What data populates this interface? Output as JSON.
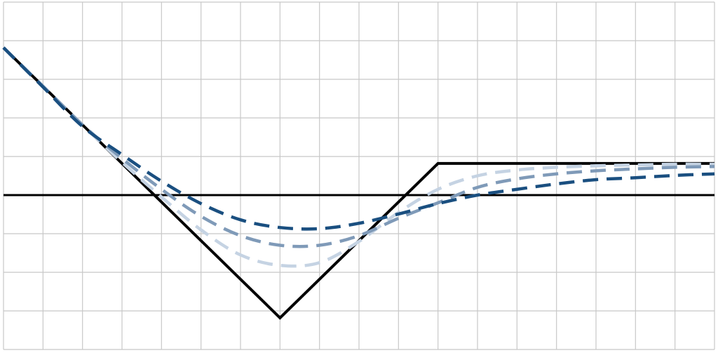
{
  "chart_data": {
    "type": "line",
    "title": "",
    "xlabel": "",
    "ylabel": "",
    "xlim": [
      0,
      18
    ],
    "ylim": [
      -4.05,
      5
    ],
    "grid": true,
    "legend": "none",
    "zero_line": 0,
    "series": [
      {
        "style": "solid",
        "color": "#000000",
        "x": [
          0,
          7,
          11,
          18
        ],
        "y": [
          3.82,
          -3.18,
          0.82,
          0.82
        ]
      },
      {
        "style": "dashed",
        "color": "#c5d3e3",
        "x": [
          0,
          1,
          2,
          3,
          4,
          5,
          6,
          7,
          8,
          9,
          10,
          11,
          12,
          13,
          14,
          15,
          16,
          17,
          18
        ],
        "y": [
          3.82,
          2.82,
          1.82,
          0.85,
          -0.05,
          -0.9,
          -1.55,
          -1.82,
          -1.75,
          -1.2,
          -0.45,
          0.15,
          0.5,
          0.65,
          0.72,
          0.76,
          0.78,
          0.8,
          0.8
        ]
      },
      {
        "style": "dashed",
        "color": "#7f9ab8",
        "x": [
          0,
          1,
          2,
          3,
          4,
          5,
          6,
          7,
          8,
          9,
          10,
          11,
          12,
          13,
          14,
          15,
          16,
          17,
          18
        ],
        "y": [
          3.82,
          2.82,
          1.82,
          0.95,
          0.15,
          -0.55,
          -1.05,
          -1.3,
          -1.3,
          -1.05,
          -0.6,
          -0.2,
          0.2,
          0.42,
          0.55,
          0.63,
          0.68,
          0.72,
          0.74
        ]
      },
      {
        "style": "dashed",
        "color": "#1a4f80",
        "x": [
          0,
          1,
          2,
          3,
          4,
          5,
          6,
          7,
          8,
          9,
          10,
          11,
          12,
          13,
          14,
          15,
          16,
          17,
          18
        ],
        "y": [
          3.82,
          2.8,
          1.78,
          1.05,
          0.36,
          -0.22,
          -0.64,
          -0.84,
          -0.87,
          -0.73,
          -0.49,
          -0.22,
          0,
          0.15,
          0.29,
          0.4,
          0.45,
          0.51,
          0.55
        ]
      }
    ]
  }
}
